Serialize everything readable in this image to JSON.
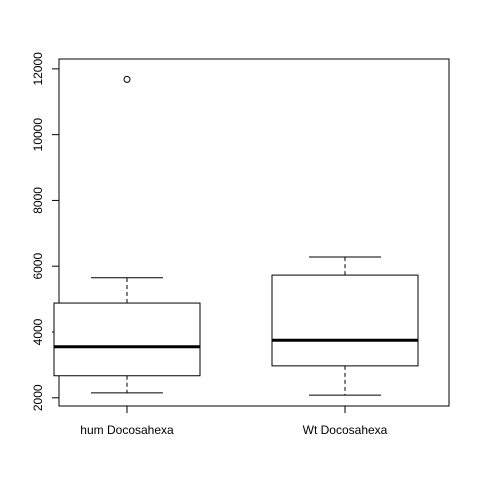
{
  "chart_data": {
    "type": "boxplot",
    "title": "",
    "xlabel": "",
    "ylabel": "",
    "ylim": [
      1750,
      12300
    ],
    "y_ticks": [
      2000,
      4000,
      6000,
      8000,
      10000,
      12000
    ],
    "y_tick_labels": [
      "2000",
      "4000",
      "6000",
      "8000",
      "10000",
      "12000"
    ],
    "categories": [
      "hum Docosahexa",
      "Wt Docosahexa"
    ],
    "boxes": [
      {
        "label": "hum Docosahexa",
        "whisker_low": 2150,
        "q1": 2670,
        "median": 3550,
        "q3": 4880,
        "whisker_high": 5650,
        "outliers": [
          11680
        ]
      },
      {
        "label": "Wt Docosahexa",
        "whisker_low": 2080,
        "q1": 2970,
        "median": 3750,
        "q3": 5730,
        "whisker_high": 6280,
        "outliers": []
      }
    ]
  }
}
